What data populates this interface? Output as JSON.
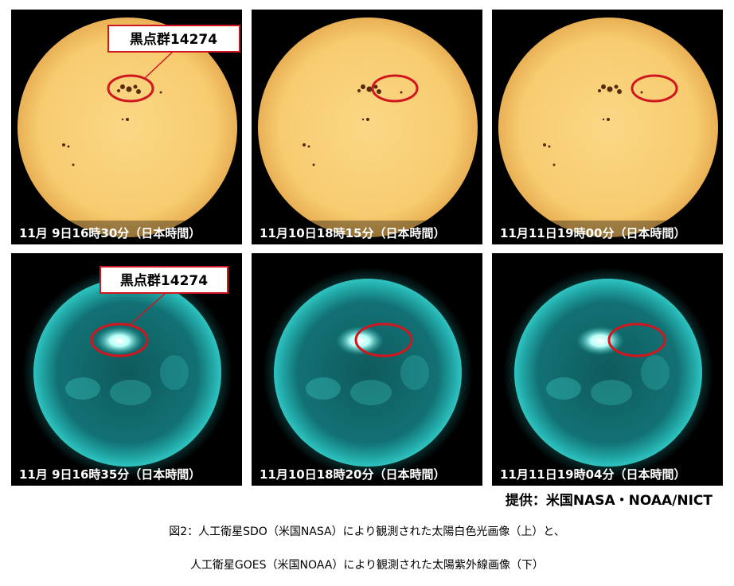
{
  "panels": [
    {
      "timestamp": "11月 9日16時30分（日本時間）",
      "callout": "黒点群14274"
    },
    {
      "timestamp": "11月10日18時15分（日本時間）"
    },
    {
      "timestamp": "11月11日19時00分（日本時間）"
    },
    {
      "timestamp": "11月 9日16時35分（日本時間）",
      "callout": "黒点群14274"
    },
    {
      "timestamp": "11月10日18時20分（日本時間）"
    },
    {
      "timestamp": "11月11日19時04分（日本時間）"
    }
  ],
  "credit": "提供：米国NASA・NOAA/NICT",
  "caption": [
    "図2：人工衛星SDO（米国NASA）により観測された太陽白色光画像（上）と、",
    "人工衛星GOES（米国NOAA）により観測された太陽紫外線画像（下）"
  ]
}
